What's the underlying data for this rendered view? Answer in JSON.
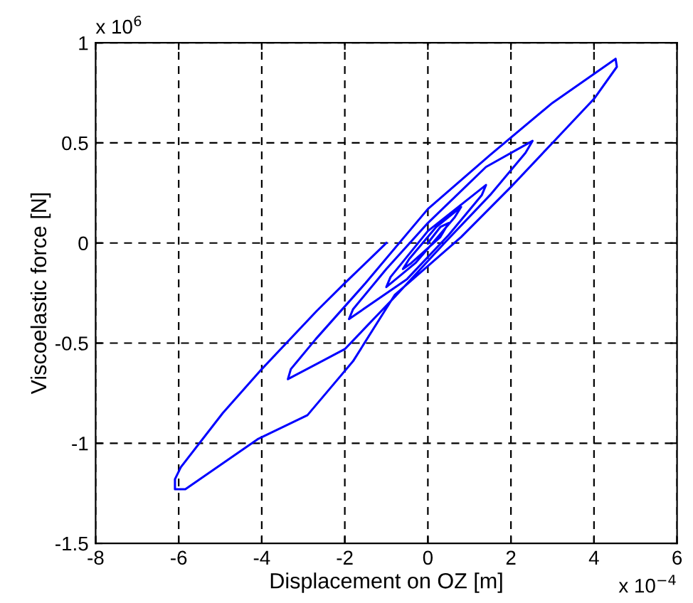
{
  "chart_data": {
    "type": "line",
    "xlabel": "Displacement on OZ [m]",
    "ylabel": "Viscoelastic force [N]",
    "annotations": [
      "x 10$^{6}$",
      "x 10$^{−4}$"
    ],
    "xlim": [
      -8,
      6
    ],
    "xticks": [
      -8,
      -6,
      -4,
      -2,
      0,
      2,
      4,
      6
    ],
    "ylim": [
      -1.5,
      1
    ],
    "yticks": [
      -1.5,
      -1,
      -0.5,
      0,
      0.5,
      1
    ],
    "grid": true,
    "line_style": "solid",
    "marker": "none",
    "series": [
      {
        "color": "#0000ff",
        "x": [
          0,
          0.3,
          0.5,
          0.3,
          -0.4,
          -0.6,
          -0.45,
          0.2,
          0.8,
          0.65,
          -0.3,
          -1.0,
          -0.9,
          0,
          1.4,
          1.3,
          0.5,
          -0.5,
          -1.9,
          -1.8,
          -1.0,
          0,
          1.4,
          2.52,
          2.35,
          1.5,
          0.4,
          -0.8,
          -2.0,
          -3.37,
          -3.3,
          -2.7,
          -1.5,
          0,
          1.5,
          3.0,
          4.52,
          4.55,
          4.0,
          3.0,
          2.0,
          0.8,
          -0.8,
          -1.8,
          -2.9,
          -4.1,
          -5.84,
          -6.09,
          -6.09,
          -5.95,
          -4.94,
          -4.0,
          -2.68,
          -2.0,
          -1.0
        ],
        "values": [
          0,
          0.08,
          0.1,
          0.03,
          -0.1,
          -0.13,
          -0.08,
          0.08,
          0.18,
          0.13,
          -0.1,
          -0.22,
          -0.17,
          0.06,
          0.29,
          0.24,
          0.04,
          -0.18,
          -0.38,
          -0.33,
          -0.13,
          0.1,
          0.38,
          0.51,
          0.45,
          0.24,
          0,
          -0.27,
          -0.53,
          -0.68,
          -0.63,
          -0.48,
          -0.2,
          0.17,
          0.44,
          0.7,
          0.92,
          0.88,
          0.72,
          0.5,
          0.28,
          0.03,
          -0.26,
          -0.59,
          -0.86,
          -0.98,
          -1.23,
          -1.23,
          -1.18,
          -1.12,
          -0.85,
          -0.63,
          -0.34,
          -0.2,
          0
        ]
      }
    ]
  }
}
